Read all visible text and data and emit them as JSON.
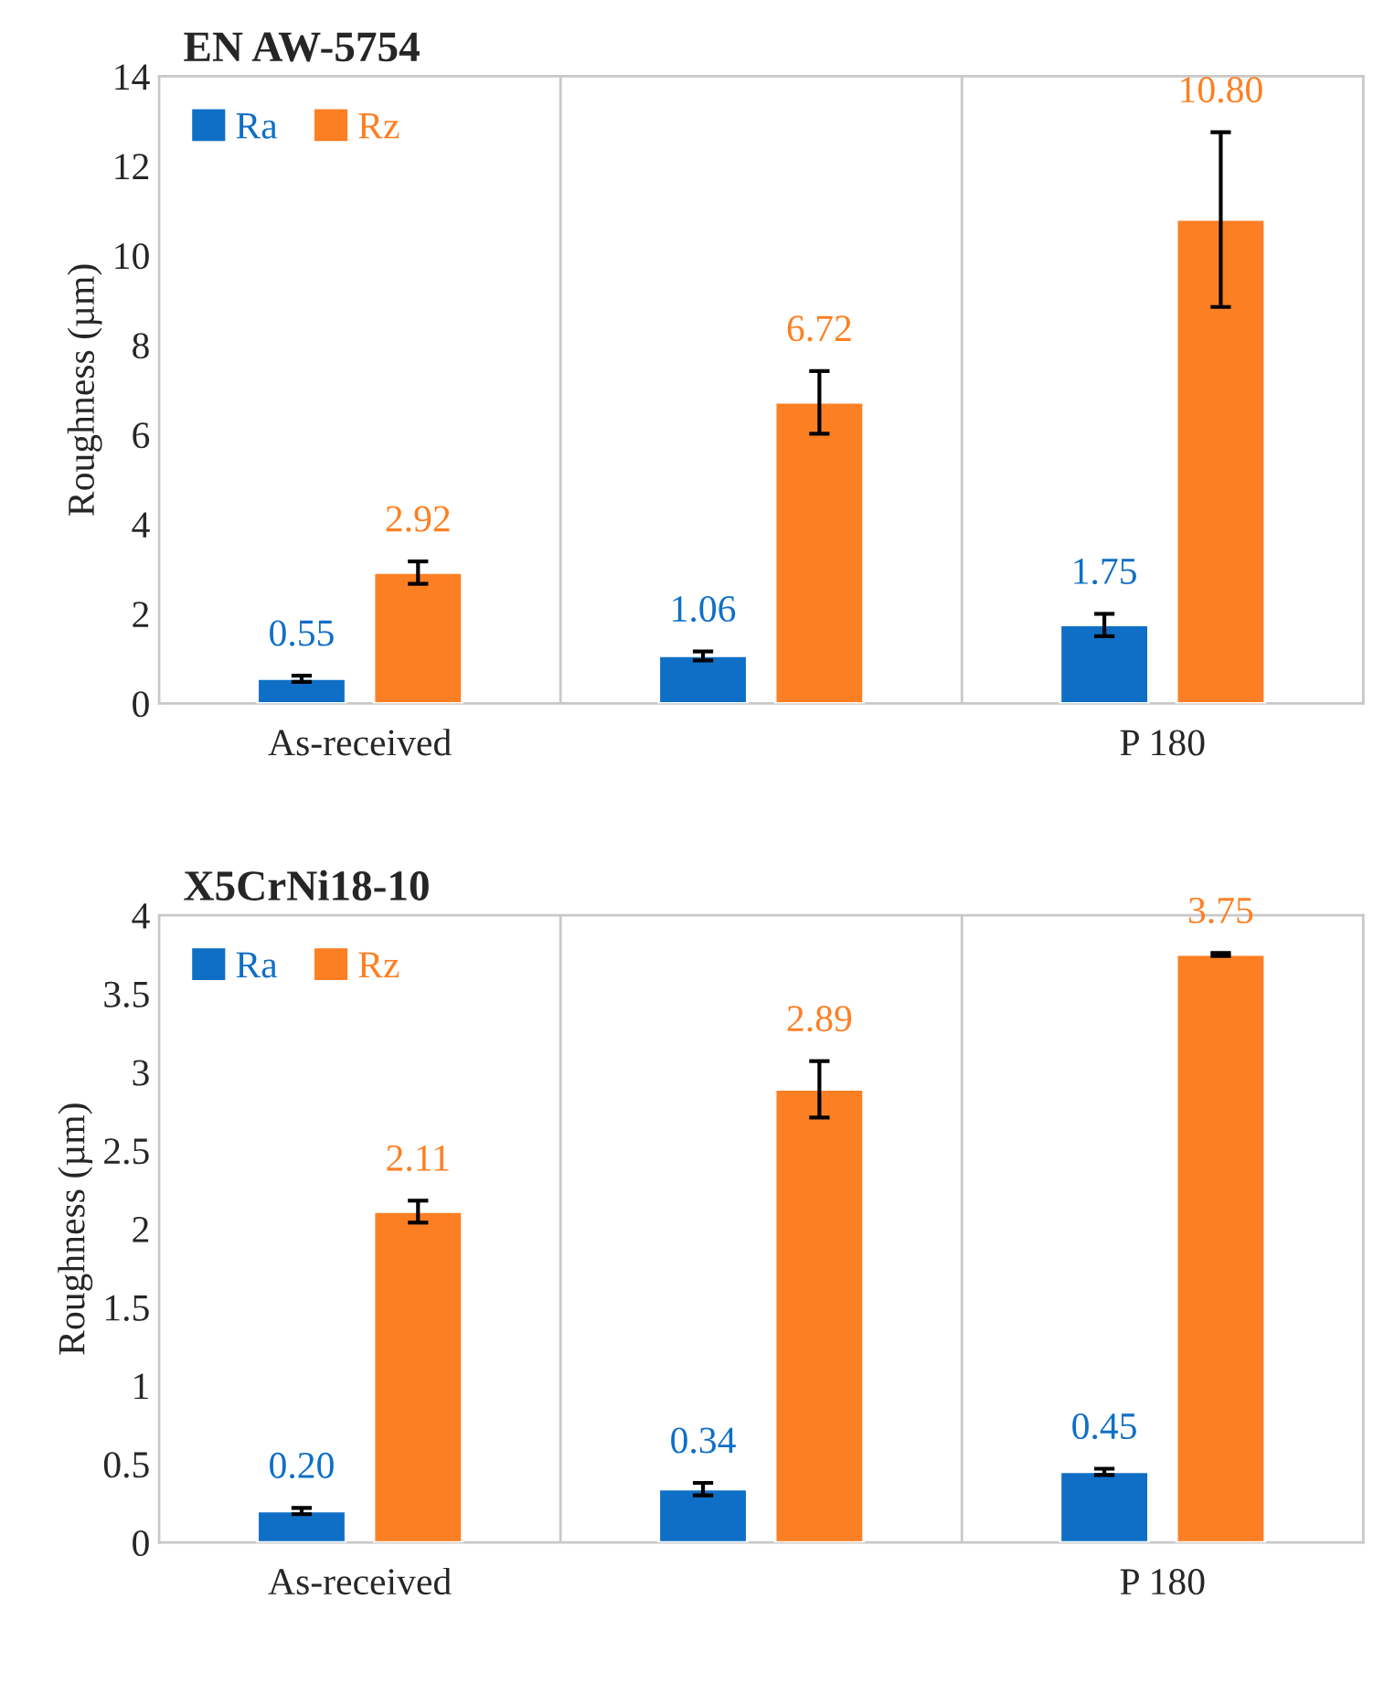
{
  "chart_data": [
    {
      "type": "bar",
      "title": "EN AW-5754",
      "ylabel": "Roughness (µm)",
      "categories": [
        "As-received",
        null,
        "P 180"
      ],
      "ylim": [
        0,
        14
      ],
      "yticks": [
        0,
        2,
        4,
        6,
        8,
        10,
        12,
        14
      ],
      "grid": "x",
      "legend": "top left",
      "series": [
        {
          "name": "Ra",
          "color": "#0f6fc6",
          "values": [
            0.55,
            1.06,
            1.75
          ],
          "errors": [
            0.07,
            0.1,
            0.25
          ],
          "value_labels": [
            "0.55",
            "1.06",
            "1.75"
          ]
        },
        {
          "name": "Rz",
          "color": "#fd7f23",
          "values": [
            2.92,
            6.72,
            10.8
          ],
          "errors": [
            0.25,
            0.7,
            1.95
          ],
          "value_labels": [
            "2.92",
            "6.72",
            "10.80"
          ]
        }
      ]
    },
    {
      "type": "bar",
      "title": "X5CrNi18-10",
      "ylabel": "Roughness (µm)",
      "categories": [
        "As-received",
        null,
        "P 180"
      ],
      "ylim": [
        0,
        4
      ],
      "yticks": [
        0,
        0.5,
        1,
        1.5,
        2,
        2.5,
        3,
        3.5,
        4
      ],
      "grid": "x",
      "legend": "top left",
      "series": [
        {
          "name": "Ra",
          "color": "#0f6fc6",
          "values": [
            0.2,
            0.34,
            0.45
          ],
          "errors": [
            0.02,
            0.04,
            0.02
          ],
          "value_labels": [
            "0.20",
            "0.34",
            "0.45"
          ]
        },
        {
          "name": "Rz",
          "color": "#fd7f23",
          "values": [
            2.11,
            2.89,
            3.75
          ],
          "errors": [
            0.07,
            0.18,
            0.01
          ],
          "value_labels": [
            "2.11",
            "2.89",
            "3.75"
          ]
        }
      ]
    }
  ]
}
